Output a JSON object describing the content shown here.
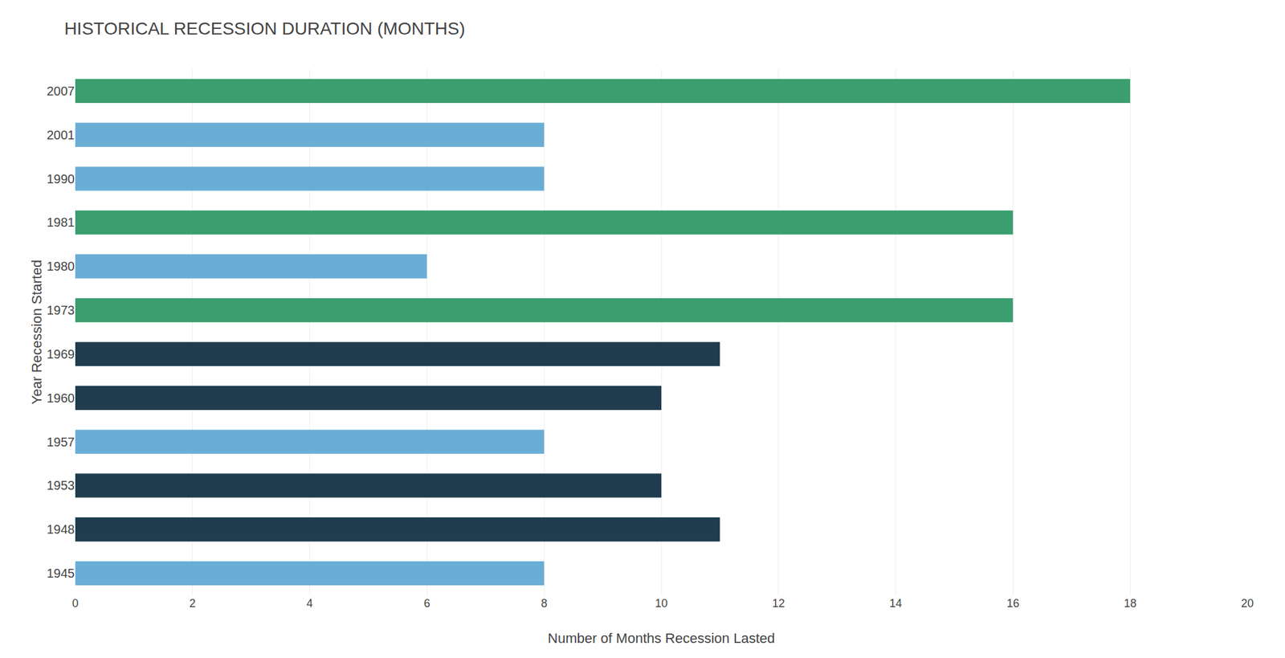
{
  "chart_data": {
    "type": "bar",
    "orientation": "horizontal",
    "title": "HISTORICAL RECESSION DURATION (MONTHS)",
    "xlabel": "Number of Months Recession Lasted",
    "ylabel": "Year Recession Started",
    "categories": [
      "2007",
      "2001",
      "1990",
      "1981",
      "1980",
      "1973",
      "1969",
      "1960",
      "1957",
      "1953",
      "1948",
      "1945"
    ],
    "values": [
      18,
      8,
      8,
      16,
      6,
      16,
      11,
      10,
      8,
      10,
      11,
      8
    ],
    "colors": [
      "#3a9e6e",
      "#6aaed6",
      "#6aaed6",
      "#3a9e6e",
      "#6aaed6",
      "#3a9e6e",
      "#1f3d4f",
      "#1f3d4f",
      "#6aaed6",
      "#1f3d4f",
      "#1f3d4f",
      "#6aaed6"
    ],
    "xlim": [
      0,
      20
    ],
    "xticks": [
      0,
      2,
      4,
      6,
      8,
      10,
      12,
      14,
      16,
      18,
      20
    ],
    "grid": true
  }
}
